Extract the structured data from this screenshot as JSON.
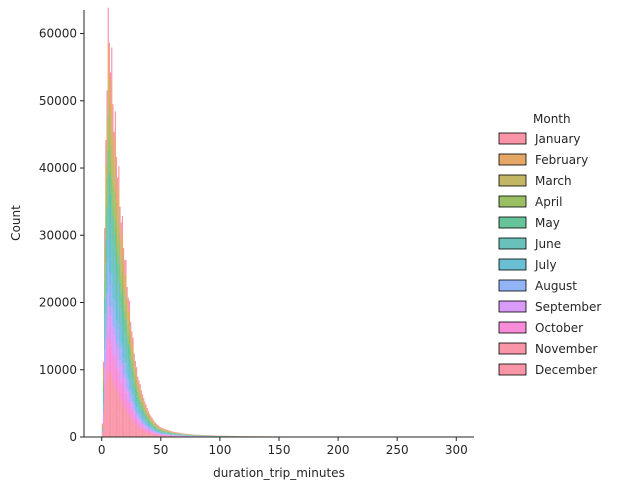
{
  "chart_data": {
    "type": "histogram",
    "title": "",
    "xlabel": "duration_trip_minutes",
    "ylabel": "Count",
    "xlim": [
      -15,
      315
    ],
    "ylim": [
      0,
      63500
    ],
    "x_ticks": [
      0,
      50,
      100,
      150,
      200,
      250,
      300
    ],
    "y_ticks": [
      0,
      10000,
      20000,
      30000,
      40000,
      50000,
      60000
    ],
    "grid": false,
    "multiple": "stack",
    "legend": {
      "title": "Month",
      "placement": "right"
    },
    "series": [
      {
        "name": "January",
        "color": "#f77189"
      },
      {
        "name": "February",
        "color": "#dc8932"
      },
      {
        "name": "March",
        "color": "#ae9d31"
      },
      {
        "name": "April",
        "color": "#77ab31"
      },
      {
        "name": "May",
        "color": "#33b07a"
      },
      {
        "name": "June",
        "color": "#36ada4"
      },
      {
        "name": "July",
        "color": "#38a9c5"
      },
      {
        "name": "August",
        "color": "#6e9bf4"
      },
      {
        "name": "September",
        "color": "#cc7af4"
      },
      {
        "name": "October",
        "color": "#f565cc"
      },
      {
        "name": "November",
        "color": "#f77189"
      },
      {
        "name": "December",
        "color": "#f77189"
      }
    ],
    "stack_profile": {
      "x": [
        0,
        1,
        2,
        3,
        4,
        5,
        6,
        7,
        8,
        9,
        10,
        12,
        14,
        16,
        18,
        20,
        22,
        24,
        26,
        28,
        30,
        35,
        40,
        45,
        50,
        60,
        70,
        80,
        100,
        120,
        150,
        200,
        250,
        300
      ],
      "total": [
        0,
        4000,
        20000,
        38000,
        51000,
        59000,
        60000,
        59000,
        56000,
        52000,
        49000,
        44000,
        39000,
        34000,
        30000,
        26000,
        22000,
        18500,
        15000,
        12000,
        9500,
        6000,
        3600,
        2200,
        1400,
        800,
        500,
        350,
        200,
        130,
        80,
        40,
        20,
        10
      ]
    }
  }
}
